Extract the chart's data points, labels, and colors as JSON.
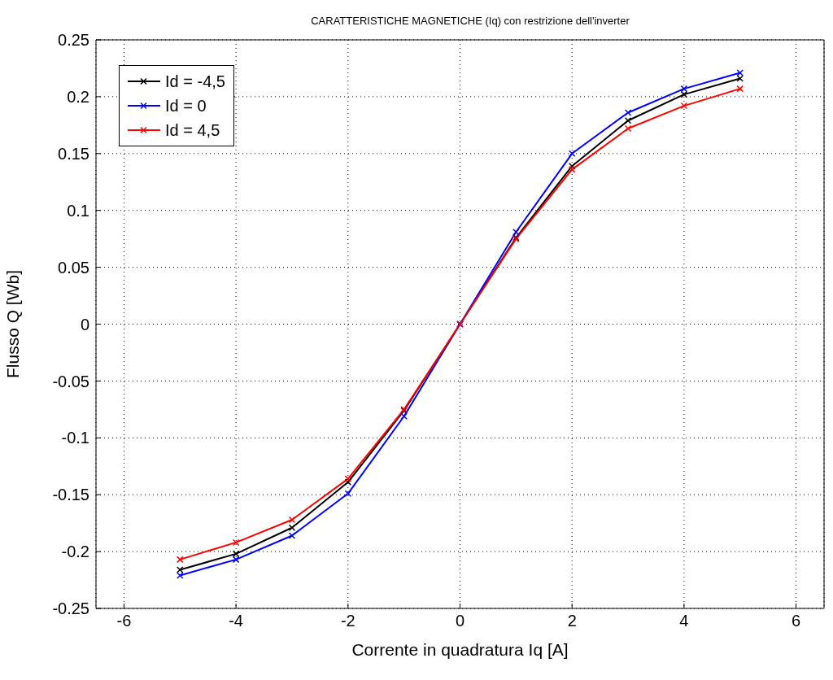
{
  "chart_data": {
    "type": "line",
    "title": "CARATTERISTICHE MAGNETICHE (Iq) con restrizione dell'inverter",
    "xlabel": "Corrente in quadratura Iq [A]",
    "ylabel": "Flusso Q [Wb]",
    "x": [
      -5,
      -4,
      -3,
      -2,
      -1,
      0,
      1,
      2,
      3,
      4,
      5
    ],
    "series": [
      {
        "name": "Id = -4,5",
        "color": "#000000",
        "values": [
          -0.216,
          -0.202,
          -0.179,
          -0.139,
          -0.076,
          0,
          0.076,
          0.139,
          0.179,
          0.202,
          0.216
        ]
      },
      {
        "name": "Id = 0",
        "color": "#0000ff",
        "values": [
          -0.221,
          -0.207,
          -0.186,
          -0.149,
          -0.081,
          0,
          0.081,
          0.15,
          0.186,
          0.207,
          0.221
        ]
      },
      {
        "name": "Id = 4,5",
        "color": "#ff0000",
        "values": [
          -0.207,
          -0.192,
          -0.172,
          -0.136,
          -0.075,
          0,
          0.075,
          0.136,
          0.172,
          0.192,
          0.207
        ]
      }
    ],
    "xlim": [
      -6.5,
      6.5
    ],
    "xticks": [
      -6,
      -4,
      -2,
      0,
      2,
      4,
      6
    ],
    "ylim": [
      -0.25,
      0.25
    ],
    "yticks": [
      -0.25,
      -0.2,
      -0.15,
      -0.1,
      -0.05,
      0,
      0.05,
      0.1,
      0.15,
      0.2,
      0.25
    ],
    "grid": true,
    "legend": "top left",
    "marker": "cross",
    "line_style": "solid"
  }
}
